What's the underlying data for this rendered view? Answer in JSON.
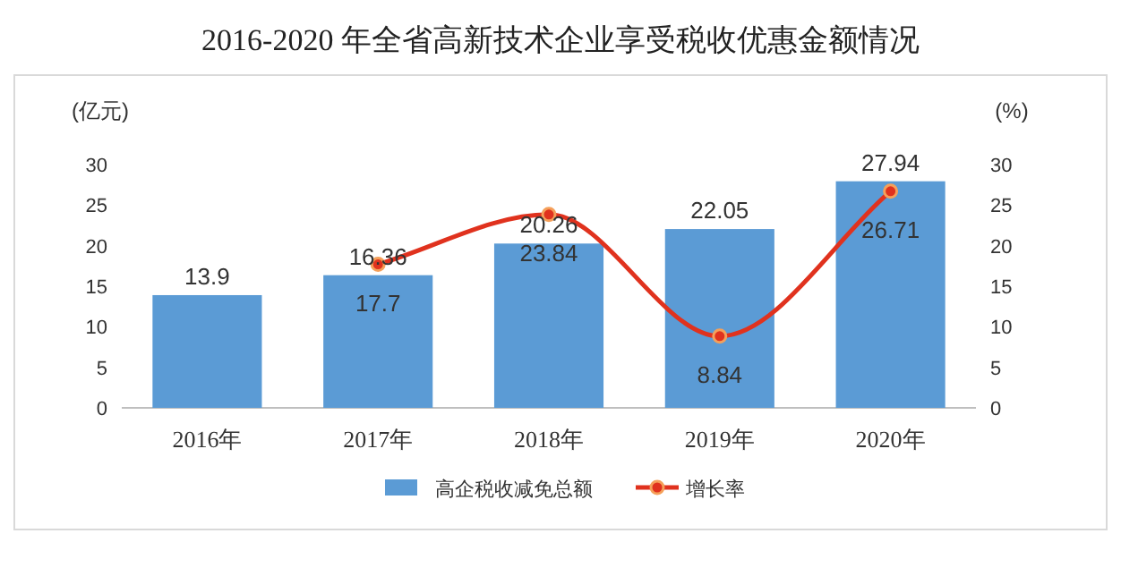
{
  "chart_data": {
    "type": "bar",
    "title": "2016-2020 年全省高新技术企业享受税收优惠金额情况",
    "ylabel": "(亿元)",
    "y2label": "(%)",
    "categories": [
      "2016年",
      "2017年",
      "2018年",
      "2019年",
      "2020年"
    ],
    "series": [
      {
        "name": "高企税收减免总额",
        "color": "#5b9bd5",
        "values": [
          13.9,
          16.36,
          20.26,
          22.05,
          27.94
        ]
      },
      {
        "name": "增长率",
        "type": "line",
        "axis": "y2",
        "color": "#e0321e",
        "values": [
          null,
          17.7,
          23.84,
          8.84,
          26.71
        ]
      }
    ],
    "ylim": [
      0,
      30
    ],
    "yticks": [
      0,
      5,
      10,
      15,
      20,
      25,
      30
    ],
    "y2lim": [
      0,
      30
    ],
    "y2ticks": [
      0,
      5,
      10,
      15,
      20,
      25,
      30
    ],
    "marker": "circle",
    "data_labels": true,
    "legend": "bottom"
  }
}
